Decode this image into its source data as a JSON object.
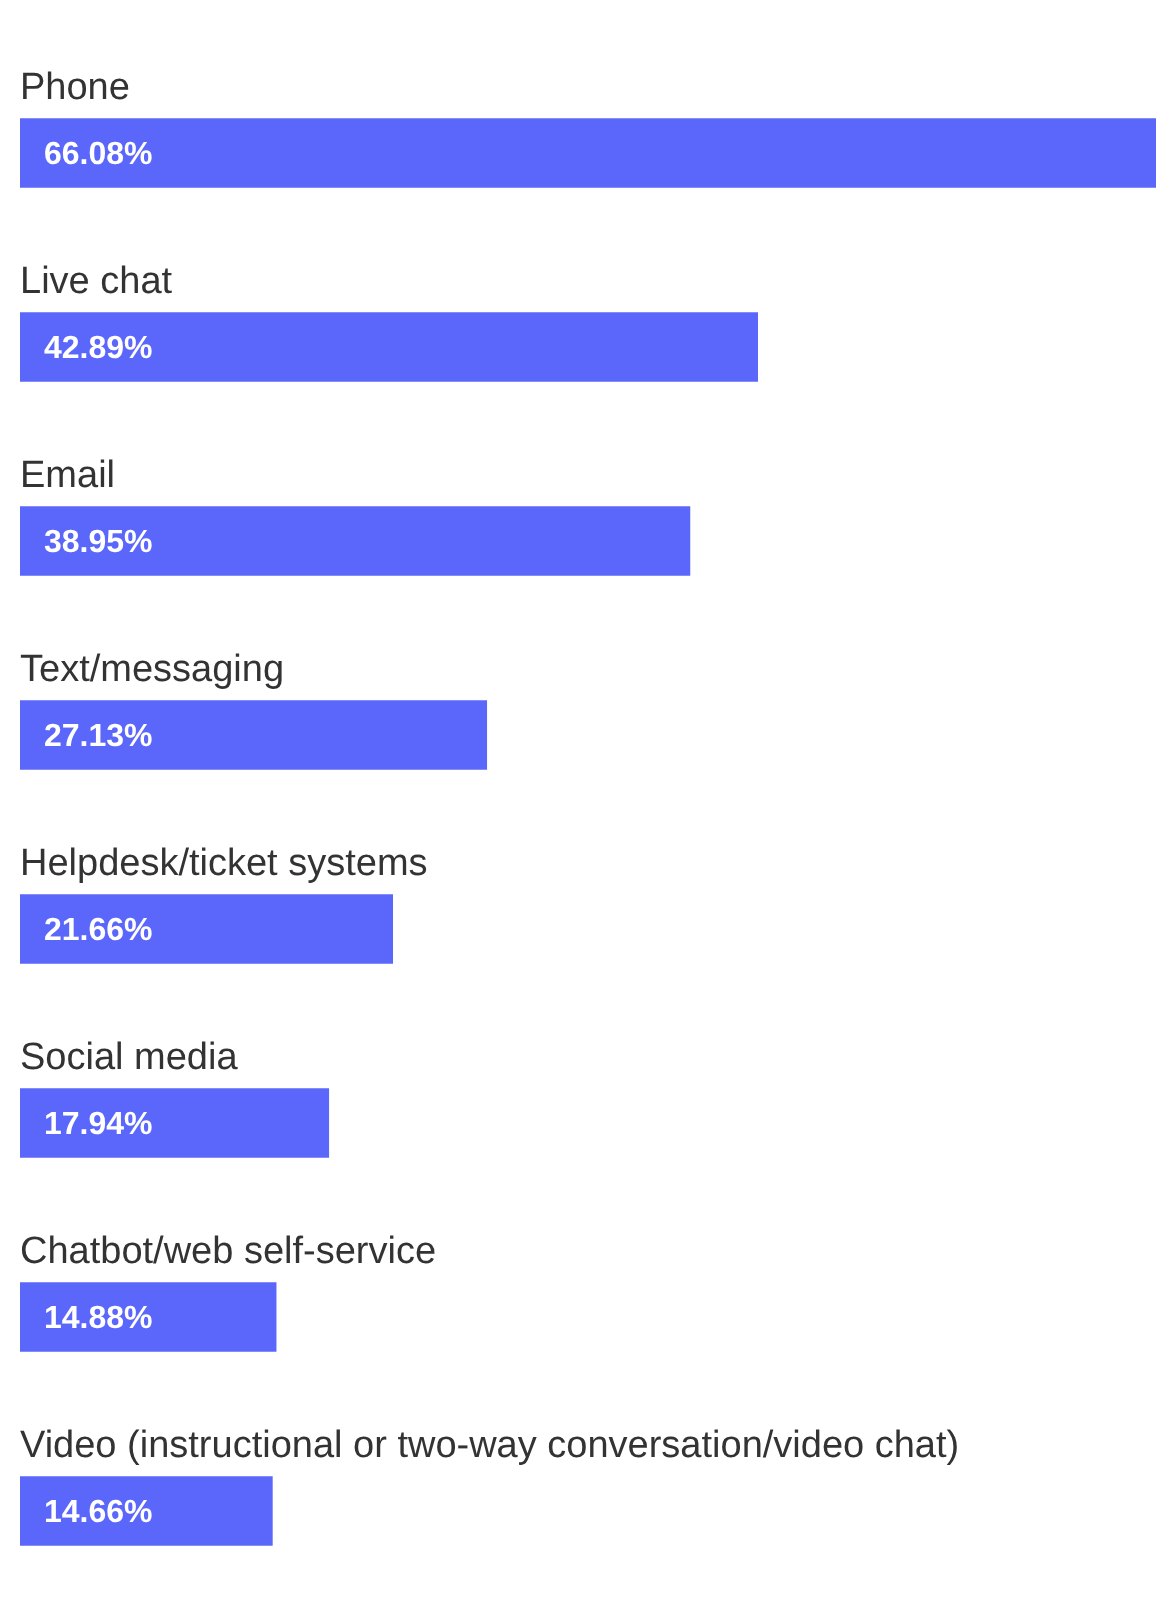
{
  "chart_data": {
    "type": "bar",
    "orientation": "horizontal",
    "categories": [
      "Phone",
      "Live chat",
      "Email",
      "Text/messaging",
      "Helpdesk/ticket systems",
      "Social media",
      "Chatbot/web self-service",
      "Video (instructional or two-way conversation/video chat)"
    ],
    "values": [
      66.08,
      42.89,
      38.95,
      27.13,
      21.66,
      17.94,
      14.88,
      14.66
    ],
    "value_labels": [
      "66.08%",
      "42.89%",
      "38.95%",
      "27.13%",
      "21.66%",
      "17.94%",
      "14.88%",
      "14.66%"
    ],
    "color": "#5b67fb"
  }
}
